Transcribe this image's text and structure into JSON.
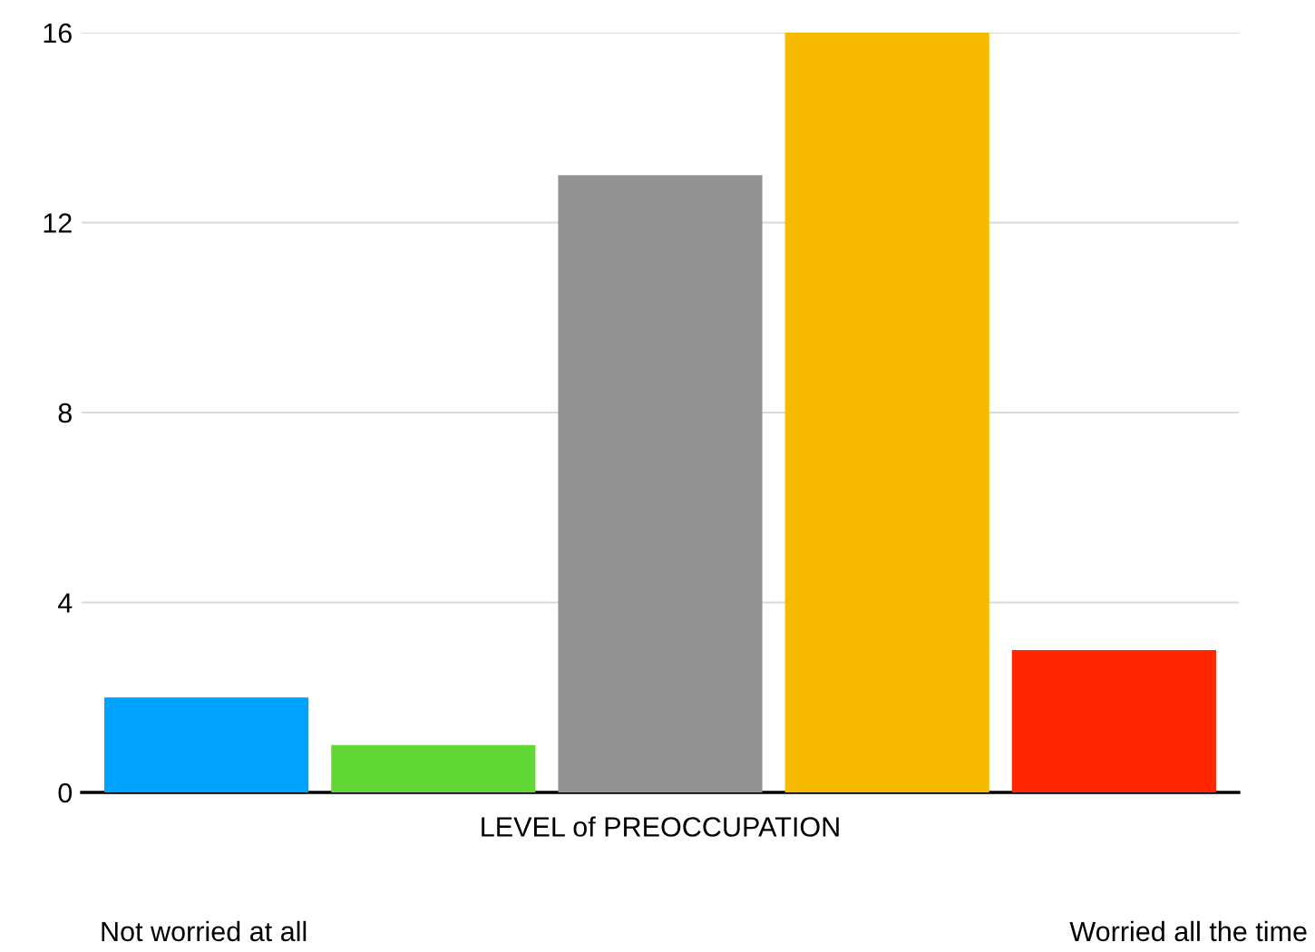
{
  "chart_data": {
    "type": "bar",
    "xlabel": "LEVEL of PREOCCUPATION",
    "categories": [
      null,
      null,
      null,
      null,
      null
    ],
    "values": [
      2,
      1,
      13,
      16,
      3
    ],
    "colors": [
      "#00a2ff",
      "#61d836",
      "#929292",
      "#f8ba00",
      "#ff2600"
    ],
    "ylim": [
      0,
      16
    ],
    "yticks": [
      0,
      4,
      8,
      12,
      16
    ],
    "grid": "y",
    "annotations": [
      "Not worried at all",
      "Worried all the time"
    ]
  }
}
